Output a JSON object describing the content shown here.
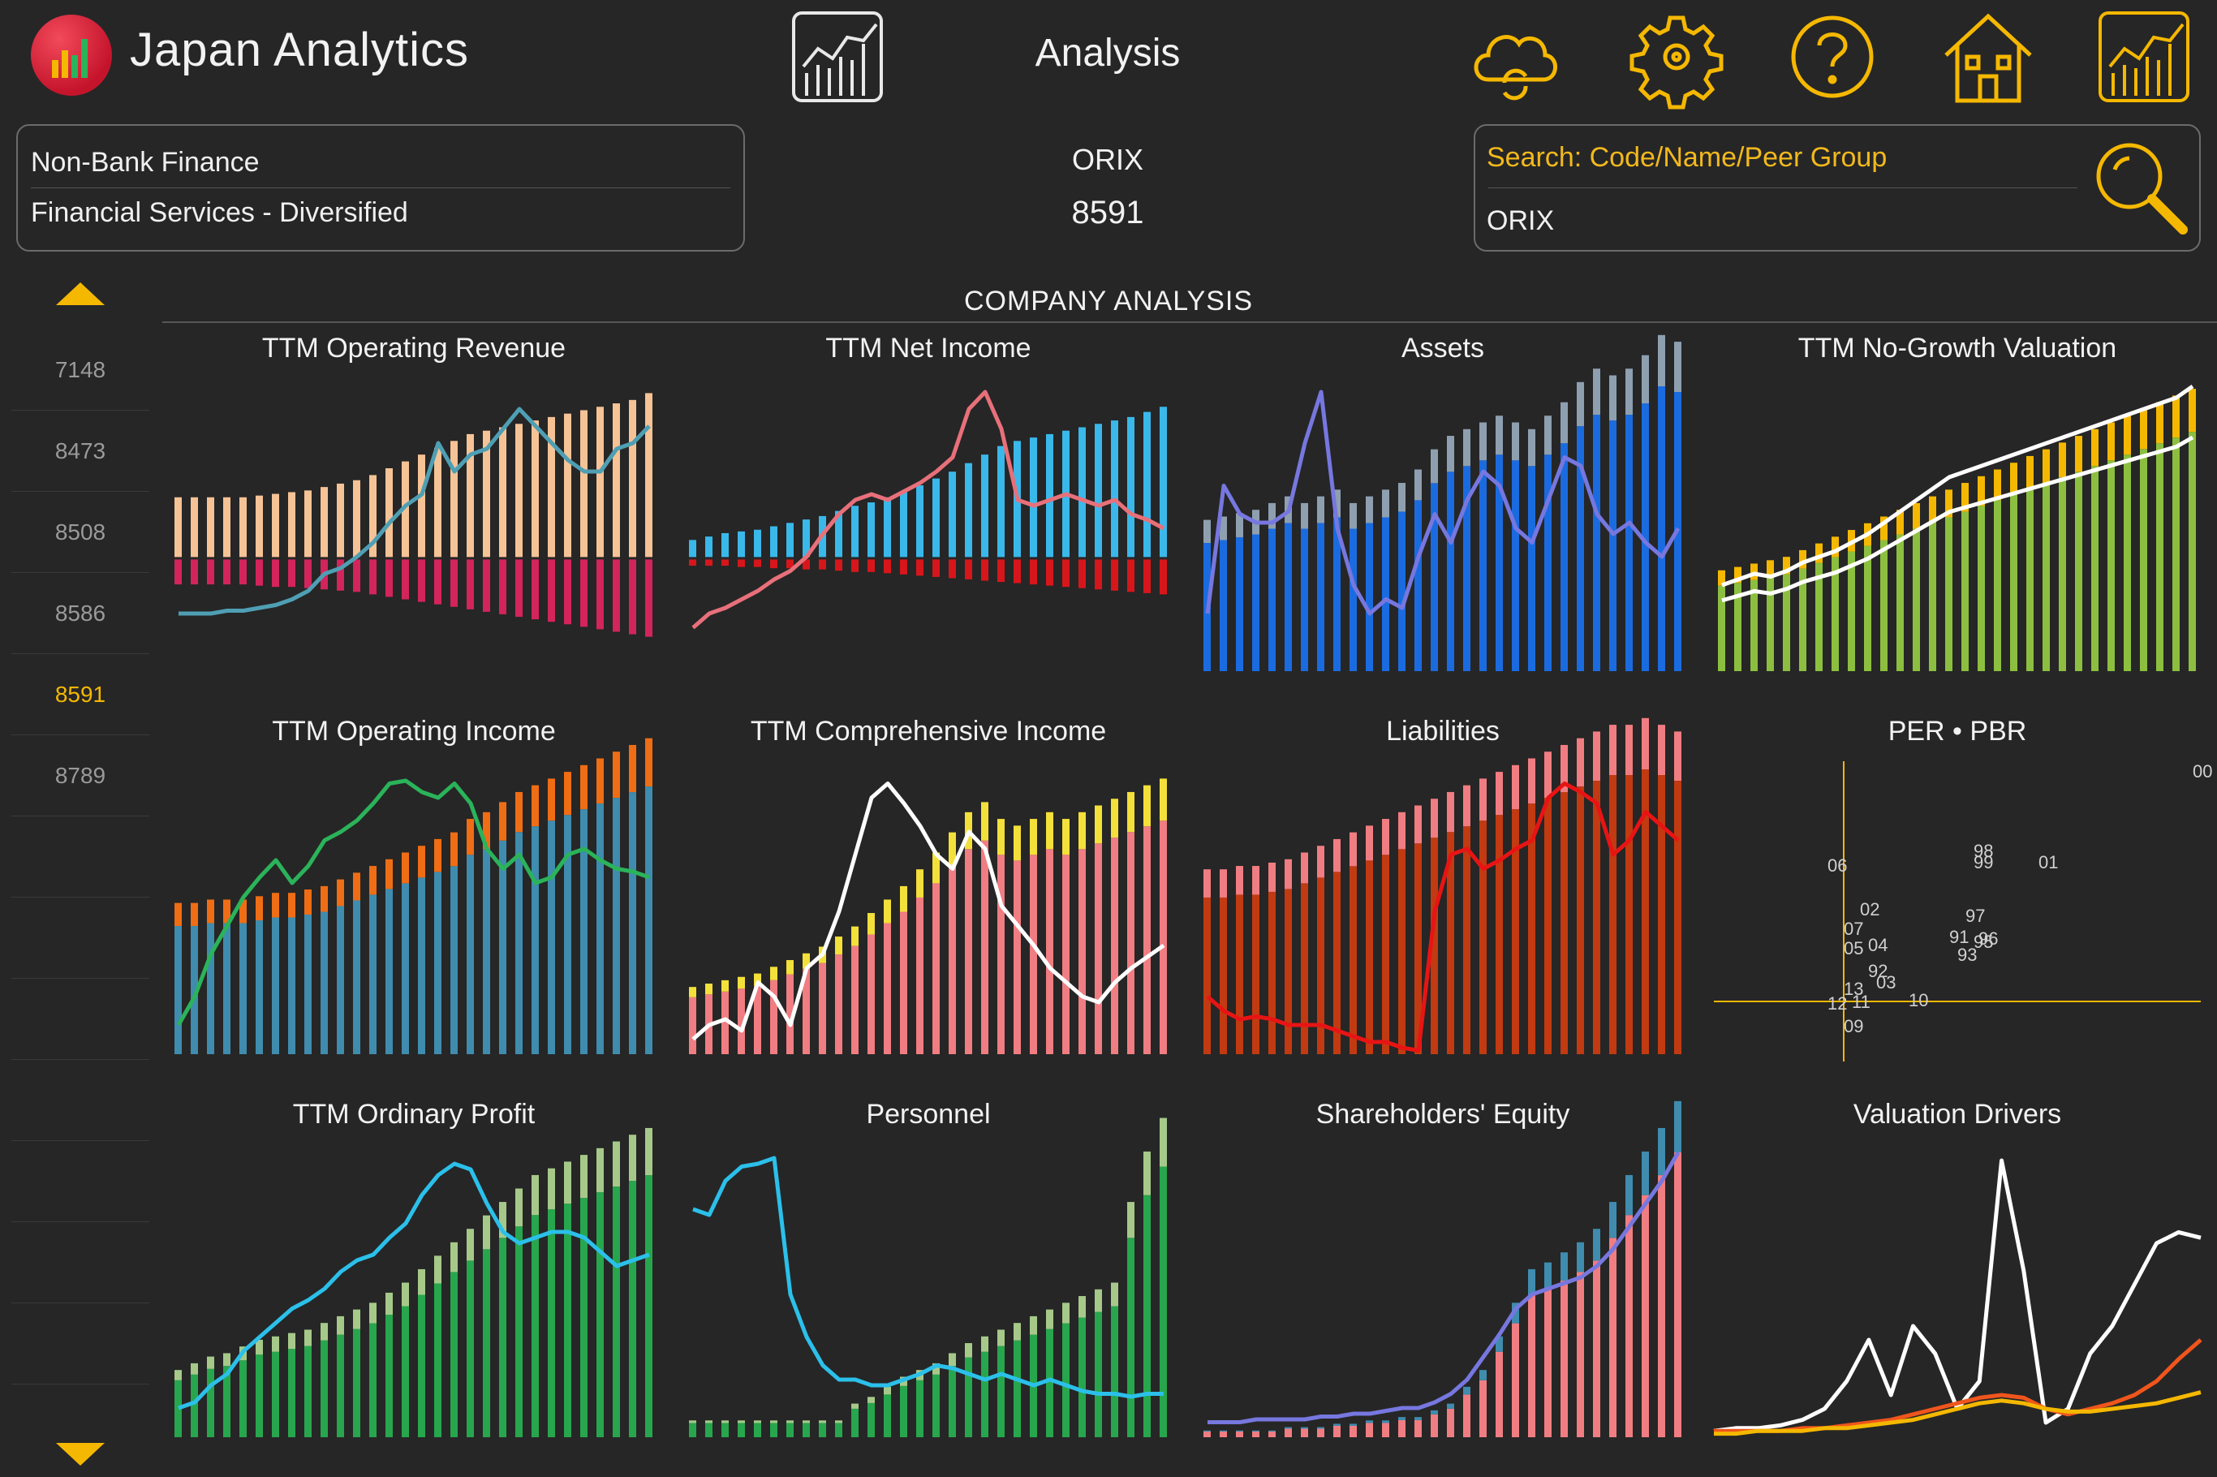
{
  "app": {
    "title": "Japan Analytics",
    "screen_title": "Analysis"
  },
  "toolbar": {
    "icons": [
      "analysis-chart-icon",
      "cloud-sync-icon",
      "gear-icon",
      "help-icon",
      "home-icon",
      "chart-icon"
    ],
    "accent": "#f5b800"
  },
  "sector": {
    "industry": "Non-Bank Finance",
    "sub_industry": "Financial Services - Diversified"
  },
  "company": {
    "name": "ORIX",
    "code": "8591"
  },
  "search": {
    "placeholder": "Search: Code/Name/Peer Group",
    "value": "ORIX"
  },
  "sidebar": {
    "items": [
      {
        "code": "7148"
      },
      {
        "code": "8473"
      },
      {
        "code": "8508"
      },
      {
        "code": "8586"
      },
      {
        "code": "8591",
        "active": true
      },
      {
        "code": "8789"
      }
    ]
  },
  "section": {
    "title": "COMPANY ANALYSIS"
  },
  "charts": [
    {
      "title": "TTM Operating Revenue"
    },
    {
      "title": "TTM Net Income"
    },
    {
      "title": "Assets"
    },
    {
      "title": "TTM No-Growth Valuation"
    },
    {
      "title": "TTM Operating Income"
    },
    {
      "title": "TTM Comprehensive Income"
    },
    {
      "title": "Liabilities"
    },
    {
      "title": "PER • PBR"
    },
    {
      "title": "TTM Ordinary Profit"
    },
    {
      "title": "Personnel"
    },
    {
      "title": "Shareholders' Equity"
    },
    {
      "title": "Valuation Drivers"
    }
  ],
  "chart_data": [
    {
      "type": "bar",
      "title": "TTM Operating Revenue",
      "colors": [
        "#f5c396",
        "#d3245c",
        "#4f9fb4"
      ],
      "series": [
        {
          "name": "pos",
          "values": [
            0.35,
            0.35,
            0.35,
            0.35,
            0.35,
            0.36,
            0.37,
            0.38,
            0.39,
            0.41,
            0.43,
            0.45,
            0.48,
            0.52,
            0.56,
            0.6,
            0.64,
            0.68,
            0.72,
            0.74,
            0.76,
            0.78,
            0.8,
            0.82,
            0.84,
            0.86,
            0.88,
            0.9,
            0.92,
            0.96
          ]
        },
        {
          "name": "neg",
          "values": [
            0.2,
            0.2,
            0.2,
            0.2,
            0.2,
            0.21,
            0.22,
            0.22,
            0.23,
            0.24,
            0.25,
            0.26,
            0.28,
            0.3,
            0.32,
            0.34,
            0.36,
            0.38,
            0.4,
            0.42,
            0.44,
            0.46,
            0.48,
            0.5,
            0.52,
            0.54,
            0.56,
            0.58,
            0.6,
            0.62
          ]
        }
      ],
      "line": [
        0.2,
        0.2,
        0.2,
        0.21,
        0.21,
        0.22,
        0.23,
        0.25,
        0.28,
        0.34,
        0.36,
        0.4,
        0.45,
        0.52,
        0.58,
        0.62,
        0.8,
        0.7,
        0.76,
        0.78,
        0.85,
        0.92,
        0.86,
        0.8,
        0.74,
        0.7,
        0.7,
        0.78,
        0.8,
        0.86
      ]
    },
    {
      "type": "bar",
      "title": "TTM Net Income",
      "colors": [
        "#3ab8ea",
        "#d7161b",
        "#e8707a"
      ],
      "series": [
        {
          "name": "pos",
          "values": [
            0.1,
            0.12,
            0.14,
            0.15,
            0.16,
            0.18,
            0.2,
            0.22,
            0.24,
            0.27,
            0.3,
            0.32,
            0.35,
            0.38,
            0.42,
            0.46,
            0.5,
            0.55,
            0.6,
            0.65,
            0.68,
            0.7,
            0.72,
            0.74,
            0.76,
            0.78,
            0.8,
            0.82,
            0.85,
            0.88
          ]
        },
        {
          "name": "neg",
          "values": [
            0.05,
            0.05,
            0.05,
            0.06,
            0.06,
            0.07,
            0.07,
            0.08,
            0.08,
            0.09,
            0.1,
            0.1,
            0.11,
            0.12,
            0.13,
            0.14,
            0.15,
            0.16,
            0.17,
            0.18,
            0.19,
            0.2,
            0.21,
            0.22,
            0.23,
            0.24,
            0.25,
            0.26,
            0.27,
            0.28
          ]
        }
      ],
      "line": [
        0.15,
        0.2,
        0.22,
        0.25,
        0.28,
        0.32,
        0.35,
        0.4,
        0.48,
        0.55,
        0.6,
        0.62,
        0.6,
        0.63,
        0.66,
        0.7,
        0.75,
        0.92,
        0.98,
        0.85,
        0.6,
        0.58,
        0.6,
        0.62,
        0.6,
        0.58,
        0.6,
        0.55,
        0.53,
        0.5
      ]
    },
    {
      "type": "bar",
      "title": "Assets",
      "colors": [
        "#1b6be0",
        "#8e9fb0",
        "#7777e0"
      ],
      "series": [
        {
          "name": "pos",
          "values": [
            0.45,
            0.46,
            0.47,
            0.48,
            0.5,
            0.52,
            0.5,
            0.52,
            0.54,
            0.5,
            0.52,
            0.54,
            0.56,
            0.6,
            0.66,
            0.7,
            0.72,
            0.74,
            0.76,
            0.74,
            0.72,
            0.76,
            0.8,
            0.86,
            0.9,
            0.88,
            0.9,
            0.94,
            1.0,
            0.98
          ]
        }
      ],
      "line": [
        0.2,
        0.65,
        0.55,
        0.52,
        0.52,
        0.56,
        0.8,
        0.98,
        0.5,
        0.3,
        0.2,
        0.25,
        0.22,
        0.4,
        0.55,
        0.45,
        0.6,
        0.7,
        0.65,
        0.5,
        0.45,
        0.6,
        0.75,
        0.72,
        0.55,
        0.48,
        0.52,
        0.45,
        0.4,
        0.5
      ]
    },
    {
      "type": "bar",
      "title": "TTM No-Growth Valuation",
      "colors": [
        "#8cbf3f",
        "#f5b800",
        "#e21b1b",
        "#ffffff"
      ],
      "series": [
        {
          "name": "pos",
          "values": [
            0.3,
            0.31,
            0.32,
            0.33,
            0.34,
            0.36,
            0.38,
            0.4,
            0.42,
            0.44,
            0.46,
            0.48,
            0.5,
            0.52,
            0.54,
            0.56,
            0.58,
            0.6,
            0.62,
            0.64,
            0.66,
            0.68,
            0.7,
            0.72,
            0.74,
            0.76,
            0.78,
            0.8,
            0.82,
            0.84
          ]
        }
      ],
      "line": [
        0.3,
        0.32,
        0.34,
        0.33,
        0.35,
        0.38,
        0.4,
        0.42,
        0.45,
        0.48,
        0.52,
        0.56,
        0.6,
        0.64,
        0.68,
        0.7,
        0.72,
        0.74,
        0.76,
        0.78,
        0.8,
        0.82,
        0.84,
        0.86,
        0.88,
        0.9,
        0.92,
        0.94,
        0.96,
        1.0
      ]
    },
    {
      "type": "bar",
      "title": "TTM Operating Income",
      "colors": [
        "#3f8cae",
        "#ef6d14",
        "#2bb35a"
      ],
      "series": [
        {
          "name": "pos",
          "values": [
            0.45,
            0.45,
            0.46,
            0.46,
            0.46,
            0.47,
            0.48,
            0.48,
            0.49,
            0.5,
            0.52,
            0.54,
            0.56,
            0.58,
            0.6,
            0.62,
            0.64,
            0.66,
            0.7,
            0.72,
            0.75,
            0.78,
            0.8,
            0.82,
            0.84,
            0.86,
            0.88,
            0.9,
            0.92,
            0.94
          ]
        }
      ],
      "line": [
        0.1,
        0.2,
        0.35,
        0.45,
        0.55,
        0.62,
        0.68,
        0.6,
        0.66,
        0.75,
        0.78,
        0.82,
        0.88,
        0.95,
        0.96,
        0.92,
        0.9,
        0.95,
        0.88,
        0.72,
        0.65,
        0.7,
        0.6,
        0.62,
        0.7,
        0.72,
        0.68,
        0.65,
        0.64,
        0.62
      ]
    },
    {
      "type": "bar",
      "title": "TTM Comprehensive Income",
      "colors": [
        "#f07d82",
        "#f3e03a",
        "#7777e0",
        "#ffffff"
      ],
      "series": [
        {
          "name": "pos",
          "values": [
            0.2,
            0.21,
            0.22,
            0.23,
            0.24,
            0.26,
            0.28,
            0.3,
            0.32,
            0.35,
            0.38,
            0.42,
            0.46,
            0.5,
            0.55,
            0.6,
            0.66,
            0.72,
            0.75,
            0.7,
            0.68,
            0.7,
            0.72,
            0.7,
            0.72,
            0.74,
            0.76,
            0.78,
            0.8,
            0.82
          ]
        }
      ],
      "line": [
        0.05,
        0.1,
        0.12,
        0.08,
        0.25,
        0.2,
        0.1,
        0.3,
        0.35,
        0.5,
        0.7,
        0.9,
        0.95,
        0.88,
        0.8,
        0.7,
        0.65,
        0.78,
        0.72,
        0.52,
        0.45,
        0.38,
        0.3,
        0.25,
        0.2,
        0.18,
        0.25,
        0.3,
        0.34,
        0.38
      ]
    },
    {
      "type": "bar",
      "title": "Liabilities",
      "colors": [
        "#c23a11",
        "#f07d82",
        "#7777e0",
        "#e81414"
      ],
      "series": [
        {
          "name": "pos",
          "values": [
            0.55,
            0.55,
            0.56,
            0.56,
            0.57,
            0.58,
            0.6,
            0.62,
            0.64,
            0.66,
            0.68,
            0.7,
            0.72,
            0.74,
            0.76,
            0.78,
            0.8,
            0.82,
            0.84,
            0.86,
            0.88,
            0.9,
            0.92,
            0.94,
            0.96,
            0.98,
            0.98,
            1.0,
            0.98,
            0.96
          ]
        }
      ],
      "line": [
        0.2,
        0.15,
        0.12,
        0.13,
        0.12,
        0.1,
        0.1,
        0.1,
        0.08,
        0.06,
        0.04,
        0.04,
        0.02,
        0.01,
        0.5,
        0.7,
        0.72,
        0.65,
        0.68,
        0.72,
        0.75,
        0.9,
        0.95,
        0.92,
        0.88,
        0.7,
        0.75,
        0.85,
        0.8,
        0.75
      ]
    },
    {
      "type": "scatter",
      "title": "PER • PBR",
      "labels": [
        "00",
        "98",
        "99",
        "01",
        "06",
        "97",
        "02",
        "91",
        "96",
        "95",
        "93",
        "07",
        "04",
        "05",
        "92",
        "03",
        "13",
        "11",
        "12",
        "10",
        "09"
      ],
      "colors": [
        "#f5b800",
        "#d0d0d0"
      ]
    },
    {
      "type": "bar",
      "title": "TTM Ordinary Profit",
      "colors": [
        "#27a64e",
        "#a6c98a",
        "#2bc0ea"
      ],
      "series": [
        {
          "name": "pos",
          "values": [
            0.2,
            0.22,
            0.24,
            0.25,
            0.27,
            0.29,
            0.3,
            0.31,
            0.32,
            0.34,
            0.36,
            0.38,
            0.4,
            0.43,
            0.46,
            0.5,
            0.54,
            0.58,
            0.62,
            0.66,
            0.7,
            0.74,
            0.78,
            0.8,
            0.82,
            0.84,
            0.86,
            0.88,
            0.9,
            0.92
          ]
        }
      ],
      "line": [
        0.1,
        0.12,
        0.18,
        0.22,
        0.3,
        0.35,
        0.4,
        0.45,
        0.48,
        0.52,
        0.58,
        0.62,
        0.64,
        0.7,
        0.75,
        0.85,
        0.92,
        0.96,
        0.94,
        0.82,
        0.72,
        0.68,
        0.7,
        0.72,
        0.72,
        0.7,
        0.65,
        0.6,
        0.62,
        0.64
      ]
    },
    {
      "type": "bar",
      "title": "Personnel",
      "colors": [
        "#27a64e",
        "#a6c98a",
        "#ef6d14",
        "#2bc0ea"
      ],
      "series": [
        {
          "name": "pos",
          "values": [
            0.05,
            0.05,
            0.05,
            0.05,
            0.05,
            0.05,
            0.05,
            0.05,
            0.05,
            0.05,
            0.1,
            0.12,
            0.15,
            0.18,
            0.2,
            0.22,
            0.25,
            0.28,
            0.3,
            0.32,
            0.34,
            0.36,
            0.38,
            0.4,
            0.42,
            0.44,
            0.46,
            0.7,
            0.85,
            0.95
          ]
        }
      ],
      "line": [
        0.8,
        0.78,
        0.9,
        0.95,
        0.96,
        0.98,
        0.5,
        0.35,
        0.25,
        0.2,
        0.2,
        0.18,
        0.18,
        0.2,
        0.22,
        0.25,
        0.24,
        0.22,
        0.2,
        0.22,
        0.2,
        0.18,
        0.2,
        0.18,
        0.16,
        0.15,
        0.15,
        0.14,
        0.15,
        0.15
      ]
    },
    {
      "type": "bar",
      "title": "Shareholders' Equity",
      "colors": [
        "#f07d82",
        "#3f8cae",
        "#f5b800",
        "#7777e0"
      ],
      "series": [
        {
          "name": "pos",
          "values": [
            0.02,
            0.02,
            0.02,
            0.02,
            0.02,
            0.03,
            0.03,
            0.03,
            0.04,
            0.04,
            0.05,
            0.05,
            0.06,
            0.06,
            0.08,
            0.1,
            0.15,
            0.2,
            0.3,
            0.4,
            0.5,
            0.52,
            0.55,
            0.58,
            0.62,
            0.7,
            0.78,
            0.85,
            0.92,
            1.0
          ]
        }
      ],
      "line": [
        0.05,
        0.05,
        0.05,
        0.06,
        0.06,
        0.06,
        0.06,
        0.07,
        0.07,
        0.08,
        0.08,
        0.09,
        0.1,
        0.1,
        0.12,
        0.15,
        0.2,
        0.28,
        0.36,
        0.45,
        0.5,
        0.52,
        0.54,
        0.56,
        0.6,
        0.66,
        0.74,
        0.82,
        0.9,
        1.0
      ]
    },
    {
      "type": "line",
      "title": "Valuation Drivers",
      "colors": [
        "#ffffff",
        "#f0551c",
        "#f5b800"
      ],
      "series": [
        {
          "name": "white",
          "values": [
            0.02,
            0.03,
            0.03,
            0.04,
            0.06,
            0.1,
            0.2,
            0.35,
            0.15,
            0.4,
            0.3,
            0.1,
            0.2,
            1.0,
            0.6,
            0.05,
            0.1,
            0.3,
            0.4,
            0.55,
            0.7,
            0.74,
            0.72
          ]
        },
        {
          "name": "orange",
          "values": [
            0.02,
            0.02,
            0.02,
            0.02,
            0.03,
            0.03,
            0.04,
            0.05,
            0.06,
            0.08,
            0.1,
            0.12,
            0.14,
            0.15,
            0.14,
            0.1,
            0.08,
            0.1,
            0.12,
            0.15,
            0.2,
            0.28,
            0.35
          ]
        },
        {
          "name": "yellow",
          "values": [
            0.01,
            0.01,
            0.02,
            0.02,
            0.02,
            0.03,
            0.03,
            0.04,
            0.05,
            0.06,
            0.08,
            0.1,
            0.12,
            0.13,
            0.12,
            0.1,
            0.09,
            0.09,
            0.1,
            0.11,
            0.12,
            0.14,
            0.16
          ]
        }
      ]
    }
  ]
}
